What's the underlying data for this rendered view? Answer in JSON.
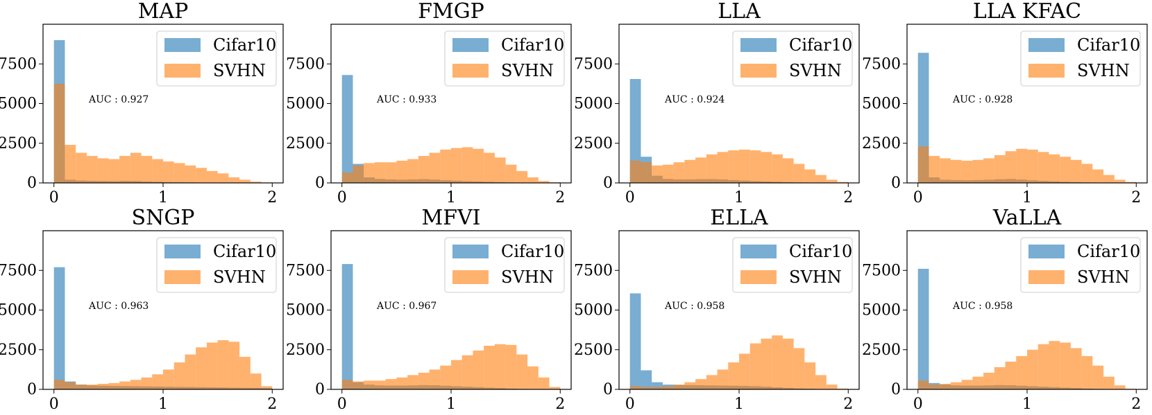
{
  "figure": {
    "colors": {
      "Cifar10": "#1f77b4",
      "SVHN": "#ff7f0e"
    }
  },
  "chart_data": [
    {
      "type": "bar",
      "title": "MAP",
      "annotation": "AUC : 0.927",
      "xticks": [
        "0",
        "1",
        "2"
      ],
      "yticks": [
        "0",
        "2500",
        "5000",
        "7500"
      ],
      "xlim": [
        -0.1,
        2.1
      ],
      "ylim": [
        0,
        10000
      ],
      "bin_width": 0.1,
      "bin_starts": [
        0.0,
        0.1,
        0.2,
        0.3,
        0.4,
        0.5,
        0.6,
        0.7,
        0.8,
        0.9,
        1.0,
        1.1,
        1.2,
        1.3,
        1.4,
        1.5,
        1.6,
        1.7,
        1.8,
        1.9
      ],
      "legend": {
        "placement": "top-right",
        "entries": [
          "Cifar10",
          "SVHN"
        ]
      },
      "series": [
        {
          "name": "Cifar10",
          "values": [
            9000,
            200,
            150,
            130,
            120,
            110,
            130,
            120,
            90,
            70,
            50,
            40,
            30,
            20,
            15,
            10,
            5,
            3,
            2,
            1
          ]
        },
        {
          "name": "SVHN",
          "values": [
            6250,
            2400,
            1900,
            1700,
            1550,
            1500,
            1700,
            1900,
            1700,
            1500,
            1350,
            1250,
            1100,
            950,
            750,
            600,
            350,
            200,
            80,
            30
          ]
        }
      ]
    },
    {
      "type": "bar",
      "title": "FMGP",
      "annotation": "AUC : 0.933",
      "xticks": [
        "0",
        "1",
        "2"
      ],
      "yticks": [
        "0",
        "2500",
        "5000",
        "7500"
      ],
      "xlim": [
        -0.1,
        2.1
      ],
      "ylim": [
        0,
        10000
      ],
      "bin_width": 0.1,
      "bin_starts": [
        0.0,
        0.1,
        0.2,
        0.3,
        0.4,
        0.5,
        0.6,
        0.7,
        0.8,
        0.9,
        1.0,
        1.1,
        1.2,
        1.3,
        1.4,
        1.5,
        1.6,
        1.7,
        1.8,
        1.9
      ],
      "legend": {
        "placement": "top-right",
        "entries": [
          "Cifar10",
          "SVHN"
        ]
      },
      "series": [
        {
          "name": "Cifar10",
          "values": [
            6800,
            1200,
            350,
            250,
            220,
            200,
            220,
            240,
            210,
            170,
            140,
            110,
            90,
            70,
            50,
            30,
            20,
            10,
            5,
            2
          ]
        },
        {
          "name": "SVHN",
          "values": [
            650,
            1100,
            1250,
            1300,
            1300,
            1400,
            1500,
            1700,
            1900,
            2100,
            2200,
            2250,
            2150,
            1900,
            1600,
            1150,
            750,
            350,
            120,
            40
          ]
        }
      ]
    },
    {
      "type": "bar",
      "title": "LLA",
      "annotation": "AUC : 0.924",
      "xticks": [
        "0",
        "1",
        "2"
      ],
      "yticks": [
        "0",
        "2500",
        "5000",
        "7500"
      ],
      "xlim": [
        -0.1,
        2.1
      ],
      "ylim": [
        0,
        10000
      ],
      "bin_width": 0.1,
      "bin_starts": [
        0.0,
        0.1,
        0.2,
        0.3,
        0.4,
        0.5,
        0.6,
        0.7,
        0.8,
        0.9,
        1.0,
        1.1,
        1.2,
        1.3,
        1.4,
        1.5,
        1.6,
        1.7,
        1.8,
        1.9
      ],
      "legend": {
        "placement": "top-right",
        "entries": [
          "Cifar10",
          "SVHN"
        ]
      },
      "series": [
        {
          "name": "Cifar10",
          "values": [
            6550,
            1650,
            450,
            250,
            220,
            220,
            240,
            240,
            220,
            180,
            150,
            120,
            90,
            70,
            50,
            30,
            20,
            10,
            5,
            2
          ]
        },
        {
          "name": "SVHN",
          "values": [
            1400,
            1300,
            1100,
            1150,
            1300,
            1450,
            1600,
            1800,
            1950,
            2050,
            2100,
            2050,
            1950,
            1800,
            1550,
            1200,
            850,
            500,
            200,
            60
          ]
        }
      ]
    },
    {
      "type": "bar",
      "title": "LLA KFAC",
      "annotation": "AUC : 0.928",
      "xticks": [
        "0",
        "1",
        "2"
      ],
      "yticks": [
        "0",
        "2500",
        "5000",
        "7500"
      ],
      "xlim": [
        -0.1,
        2.1
      ],
      "ylim": [
        0,
        10000
      ],
      "bin_width": 0.1,
      "bin_starts": [
        0.0,
        0.1,
        0.2,
        0.3,
        0.4,
        0.5,
        0.6,
        0.7,
        0.8,
        0.9,
        1.0,
        1.1,
        1.2,
        1.3,
        1.4,
        1.5,
        1.6,
        1.7,
        1.8,
        1.9
      ],
      "legend": {
        "placement": "top-right",
        "entries": [
          "Cifar10",
          "SVHN"
        ]
      },
      "series": [
        {
          "name": "Cifar10",
          "values": [
            8200,
            350,
            200,
            180,
            170,
            180,
            200,
            230,
            250,
            210,
            170,
            130,
            100,
            70,
            50,
            30,
            20,
            10,
            5,
            2
          ]
        },
        {
          "name": "SVHN",
          "values": [
            2300,
            1700,
            1550,
            1450,
            1400,
            1450,
            1550,
            1750,
            2000,
            2150,
            2100,
            1950,
            1800,
            1650,
            1450,
            1200,
            850,
            500,
            200,
            60
          ]
        }
      ]
    },
    {
      "type": "bar",
      "title": "SNGP",
      "annotation": "AUC : 0.963",
      "xticks": [
        "0",
        "1",
        "2"
      ],
      "yticks": [
        "0",
        "2500",
        "5000",
        "7500"
      ],
      "xlim": [
        -0.1,
        2.1
      ],
      "ylim": [
        0,
        10000
      ],
      "bin_width": 0.1,
      "bin_starts": [
        0.0,
        0.1,
        0.2,
        0.3,
        0.4,
        0.5,
        0.6,
        0.7,
        0.8,
        0.9,
        1.0,
        1.1,
        1.2,
        1.3,
        1.4,
        1.5,
        1.6,
        1.7,
        1.8,
        1.9
      ],
      "legend": {
        "placement": "top-right",
        "entries": [
          "Cifar10",
          "SVHN"
        ]
      },
      "series": [
        {
          "name": "Cifar10",
          "values": [
            7700,
            500,
            300,
            250,
            230,
            220,
            210,
            200,
            190,
            180,
            170,
            160,
            150,
            140,
            130,
            120,
            110,
            100,
            90,
            80
          ]
        },
        {
          "name": "SVHN",
          "values": [
            600,
            450,
            300,
            300,
            350,
            400,
            500,
            600,
            750,
            950,
            1250,
            1700,
            2200,
            2650,
            2950,
            3100,
            3000,
            2050,
            1000,
            200
          ]
        }
      ]
    },
    {
      "type": "bar",
      "title": "MFVI",
      "annotation": "AUC : 0.967",
      "xticks": [
        "0",
        "1",
        "2"
      ],
      "yticks": [
        "0",
        "2500",
        "5000",
        "7500"
      ],
      "xlim": [
        -0.1,
        2.1
      ],
      "ylim": [
        0,
        10000
      ],
      "bin_width": 0.1,
      "bin_starts": [
        0.0,
        0.1,
        0.2,
        0.3,
        0.4,
        0.5,
        0.6,
        0.7,
        0.8,
        0.9,
        1.0,
        1.1,
        1.2,
        1.3,
        1.4,
        1.5,
        1.6,
        1.7,
        1.8,
        1.9
      ],
      "legend": {
        "placement": "top-right",
        "entries": [
          "Cifar10",
          "SVHN"
        ]
      },
      "series": [
        {
          "name": "Cifar10",
          "values": [
            7900,
            450,
            300,
            250,
            240,
            240,
            250,
            270,
            260,
            230,
            200,
            170,
            140,
            110,
            80,
            50,
            30,
            20,
            10,
            5
          ]
        },
        {
          "name": "SVHN",
          "values": [
            600,
            500,
            550,
            550,
            650,
            750,
            900,
            1050,
            1250,
            1500,
            1850,
            2150,
            2450,
            2750,
            2850,
            2800,
            2200,
            1450,
            750,
            150
          ]
        }
      ]
    },
    {
      "type": "bar",
      "title": "ELLA",
      "annotation": "AUC : 0.958",
      "xticks": [
        "0",
        "1",
        "2"
      ],
      "yticks": [
        "0",
        "2500",
        "5000",
        "7500"
      ],
      "xlim": [
        -0.1,
        2.1
      ],
      "ylim": [
        0,
        10000
      ],
      "bin_width": 0.1,
      "bin_starts": [
        0.0,
        0.1,
        0.2,
        0.3,
        0.4,
        0.5,
        0.6,
        0.7,
        0.8,
        0.9,
        1.0,
        1.1,
        1.2,
        1.3,
        1.4,
        1.5,
        1.6,
        1.7,
        1.8,
        1.9
      ],
      "legend": {
        "placement": "top-right",
        "entries": [
          "Cifar10",
          "SVHN"
        ]
      },
      "series": [
        {
          "name": "Cifar10",
          "values": [
            6050,
            1200,
            450,
            300,
            280,
            270,
            260,
            250,
            240,
            230,
            220,
            200,
            170,
            130,
            90,
            60,
            40,
            20,
            10,
            5
          ]
        },
        {
          "name": "SVHN",
          "values": [
            200,
            150,
            150,
            200,
            300,
            450,
            650,
            900,
            1250,
            1700,
            2250,
            2900,
            3200,
            3400,
            3200,
            2600,
            1700,
            900,
            300,
            50
          ]
        }
      ]
    },
    {
      "type": "bar",
      "title": "VaLLA",
      "annotation": "AUC : 0.958",
      "xticks": [
        "0",
        "1",
        "2"
      ],
      "yticks": [
        "0",
        "2500",
        "5000",
        "7500"
      ],
      "xlim": [
        -0.1,
        2.1
      ],
      "ylim": [
        0,
        10000
      ],
      "bin_width": 0.1,
      "bin_starts": [
        0.0,
        0.1,
        0.2,
        0.3,
        0.4,
        0.5,
        0.6,
        0.7,
        0.8,
        0.9,
        1.0,
        1.1,
        1.2,
        1.3,
        1.4,
        1.5,
        1.6,
        1.7,
        1.8,
        1.9
      ],
      "legend": {
        "placement": "top-right",
        "entries": [
          "Cifar10",
          "SVHN"
        ]
      },
      "series": [
        {
          "name": "Cifar10",
          "values": [
            7600,
            400,
            300,
            250,
            240,
            240,
            250,
            270,
            260,
            230,
            200,
            170,
            140,
            110,
            80,
            50,
            30,
            20,
            10,
            5
          ]
        },
        {
          "name": "SVHN",
          "values": [
            550,
            300,
            350,
            450,
            600,
            800,
            1050,
            1400,
            1750,
            2100,
            2500,
            2850,
            3050,
            2950,
            2600,
            2100,
            1500,
            800,
            250,
            40
          ]
        }
      ]
    }
  ]
}
